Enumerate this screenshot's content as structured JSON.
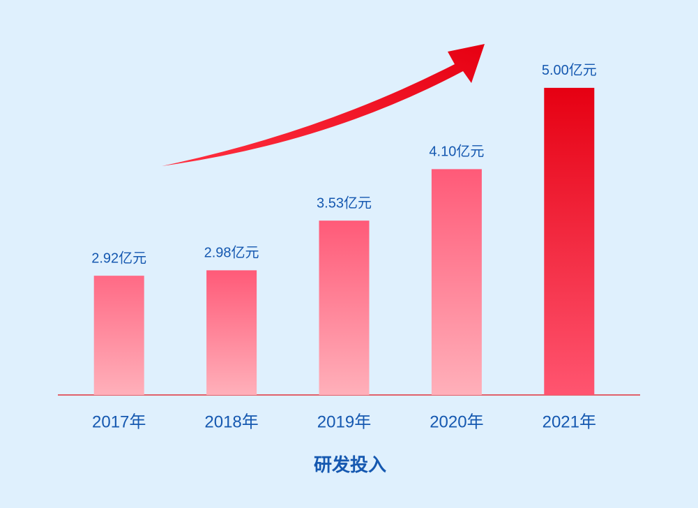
{
  "chart_data": {
    "type": "bar",
    "title": "研发投入",
    "categories": [
      "2017年",
      "2018年",
      "2019年",
      "2020年",
      "2021年"
    ],
    "values": [
      2.92,
      2.98,
      3.53,
      4.1,
      5.0
    ],
    "value_labels": [
      "2.92亿元",
      "2.98亿元",
      "3.53亿元",
      "4.10亿元",
      "5.00亿元"
    ],
    "colors": [
      "#ff6a85",
      "#ff5a78",
      "#ff5a78",
      "#ff5a78",
      "#e60012"
    ],
    "ylim": [
      1.6,
      5.2
    ]
  }
}
